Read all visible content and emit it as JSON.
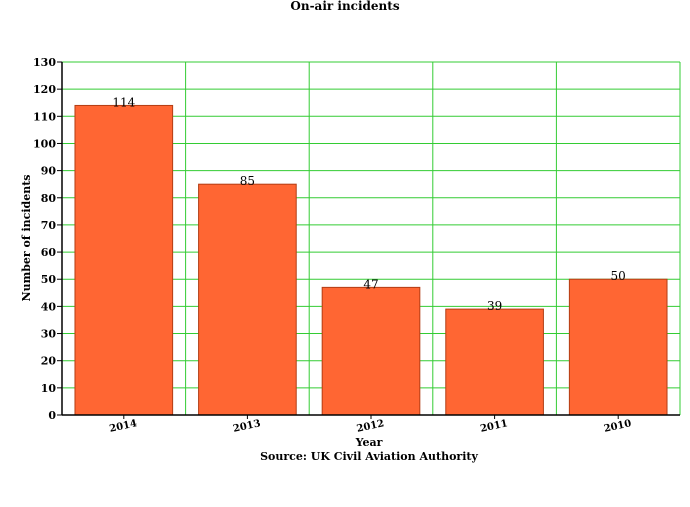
{
  "chart_data": {
    "type": "bar",
    "title": "On-air incidents",
    "xlabel": "Year",
    "ylabel": "Number of incidents",
    "source": "Source: UK Civil Aviation Authority",
    "categories": [
      "2014",
      "2013",
      "2012",
      "2011",
      "2010"
    ],
    "values": [
      114,
      85,
      47,
      39,
      50
    ],
    "ylim": [
      0,
      130
    ],
    "ytick_step": 10,
    "grid": true,
    "legend": "none",
    "colors": {
      "bar_fill": "#ff6633",
      "bar_stroke": "#b33d14",
      "grid": "#33cc33",
      "axis": "#000000"
    }
  }
}
